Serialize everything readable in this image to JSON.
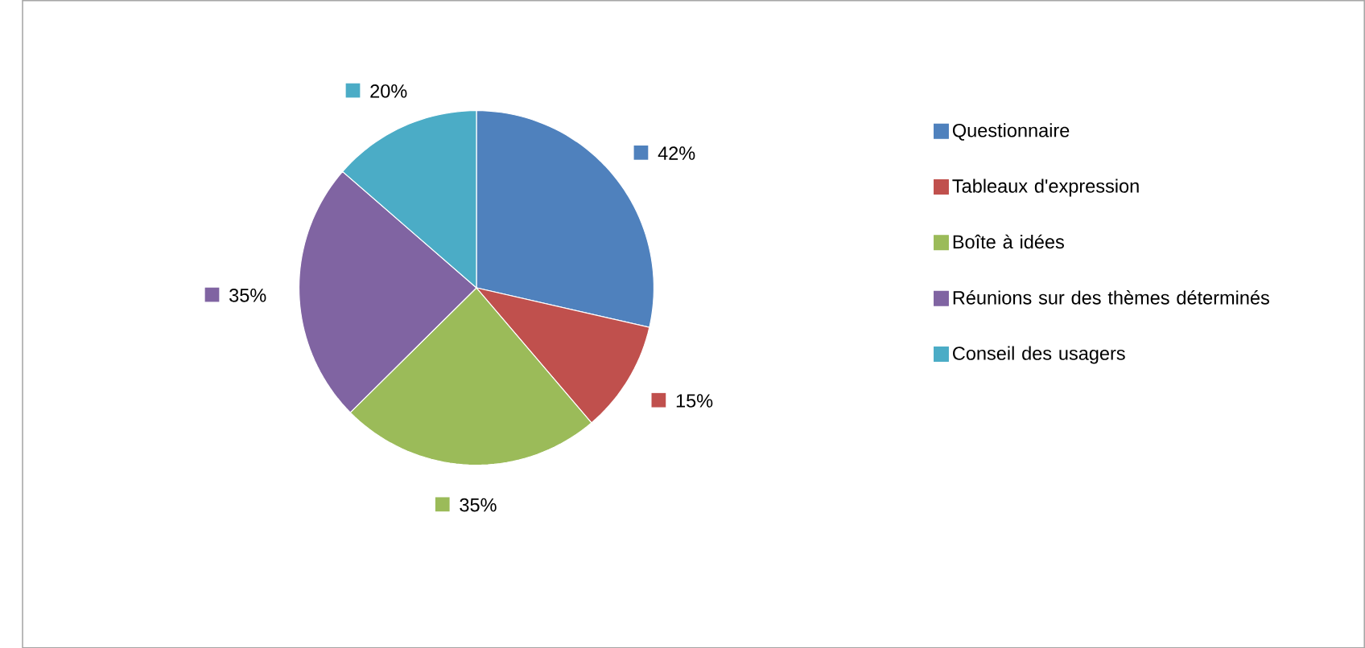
{
  "chart_data": {
    "type": "pie",
    "categories": [
      "Questionnaire",
      "Tableaux d'expression",
      "Boîte à idées",
      "Réunions sur des thèmes déterminés",
      "Conseil des usagers"
    ],
    "values": [
      42,
      15,
      35,
      35,
      20
    ],
    "value_labels": [
      "42%",
      "15%",
      "35%",
      "35%",
      "20%"
    ],
    "colors": [
      "#4f81bd",
      "#c0504d",
      "#9bbb59",
      "#8064a2",
      "#4bacc6"
    ],
    "legend": "right"
  }
}
